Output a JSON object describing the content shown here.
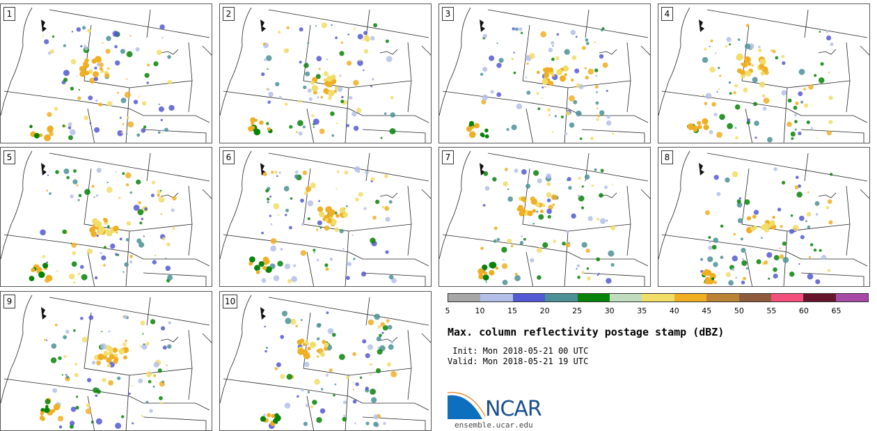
{
  "panels": [
    {
      "label": "1"
    },
    {
      "label": "2"
    },
    {
      "label": "3"
    },
    {
      "label": "4"
    },
    {
      "label": "5"
    },
    {
      "label": "6"
    },
    {
      "label": "7"
    },
    {
      "label": "8"
    },
    {
      "label": "9"
    },
    {
      "label": "10"
    }
  ],
  "colorbar": {
    "colors": [
      "#a6a6a6",
      "#b4bfe9",
      "#5358d3",
      "#4b9095",
      "#078307",
      "#bfdcbf",
      "#f1dd67",
      "#f0af23",
      "#b98234",
      "#8e5a3c",
      "#f34f7c",
      "#66162c",
      "#a74aa7"
    ],
    "ticks": [
      "5",
      "10",
      "15",
      "20",
      "25",
      "30",
      "35",
      "40",
      "45",
      "50",
      "55",
      "60",
      "65"
    ]
  },
  "title": "Max. column reflectivity postage stamp (dBZ)",
  "init": " Init: Mon 2018-05-21 00 UTC",
  "valid": "Valid: Mon 2018-05-21 19 UTC",
  "logo": {
    "text": "NCAR",
    "url": "ensemble.ucar.edu",
    "color": "#1a4e8c"
  }
}
